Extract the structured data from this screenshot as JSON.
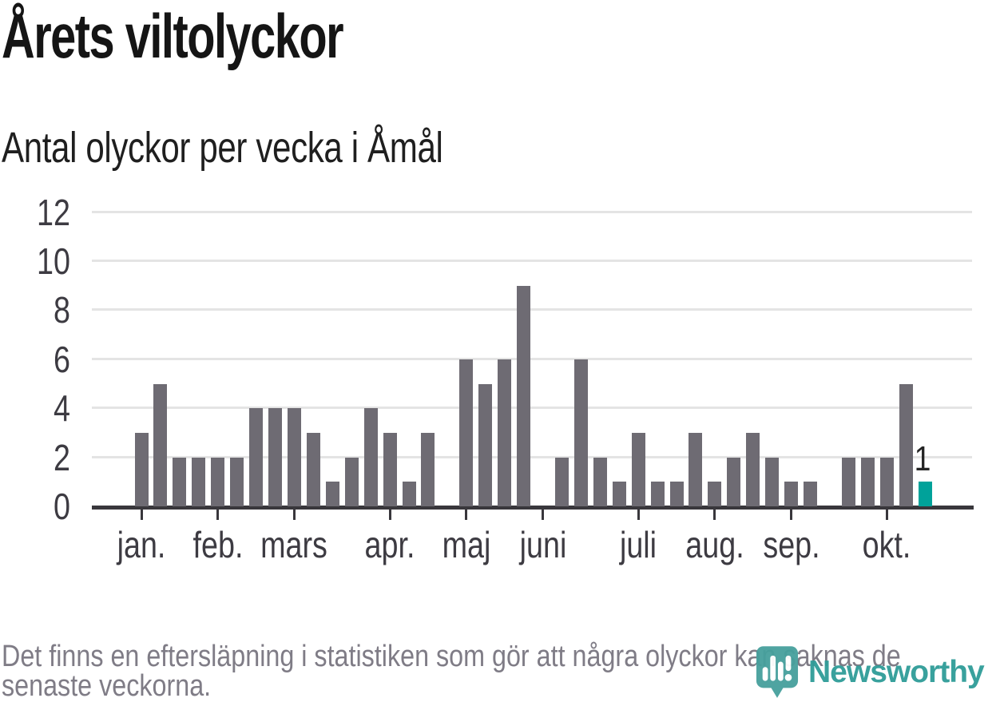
{
  "title": "Årets viltolyckor",
  "subtitle": "Antal olyckor per vecka i Åmål",
  "footer": {
    "lines": [
      "Det finns en eftersläpning i statistiken som gör att några olyckor kan saknas de",
      "senaste veckorna."
    ]
  },
  "logo": {
    "text": "Newsworthy",
    "icon": "newsworthy-marker-bar-chart-icon",
    "icon_color": "#46a09d",
    "text_color": "#2f9c98"
  },
  "chart_data": {
    "type": "bar",
    "title": "Årets viltolyckor",
    "subtitle": "Antal olyckor per vecka i Åmål",
    "xlabel": "",
    "ylabel": "",
    "x_unit": "week",
    "ylim": [
      0,
      12
    ],
    "yticks": [
      0,
      2,
      4,
      6,
      8,
      10,
      12
    ],
    "grid": true,
    "legend": "none",
    "bar_color": "#6e6b73",
    "values": [
      3,
      5,
      2,
      2,
      2,
      2,
      4,
      4,
      4,
      3,
      1,
      2,
      4,
      3,
      1,
      3,
      0,
      6,
      5,
      6,
      9,
      0,
      2,
      6,
      2,
      1,
      3,
      1,
      1,
      3,
      1,
      2,
      3,
      2,
      1,
      1,
      0,
      2,
      2,
      2,
      5,
      1
    ],
    "month_ticks": [
      {
        "label": "jan.",
        "week_index": 0
      },
      {
        "label": "feb.",
        "week_index": 4
      },
      {
        "label": "mars",
        "week_index": 8
      },
      {
        "label": "apr.",
        "week_index": 13
      },
      {
        "label": "maj",
        "week_index": 17
      },
      {
        "label": "juni",
        "week_index": 21
      },
      {
        "label": "juli",
        "week_index": 26
      },
      {
        "label": "aug.",
        "week_index": 30
      },
      {
        "label": "sep.",
        "week_index": 34
      },
      {
        "label": "okt.",
        "week_index": 39
      }
    ],
    "highlight": {
      "index": 41,
      "value": 1,
      "value_label": "1",
      "color": "#00a29a"
    },
    "axis_color": "#39373c",
    "gridline_color": "#e4e4e4"
  }
}
